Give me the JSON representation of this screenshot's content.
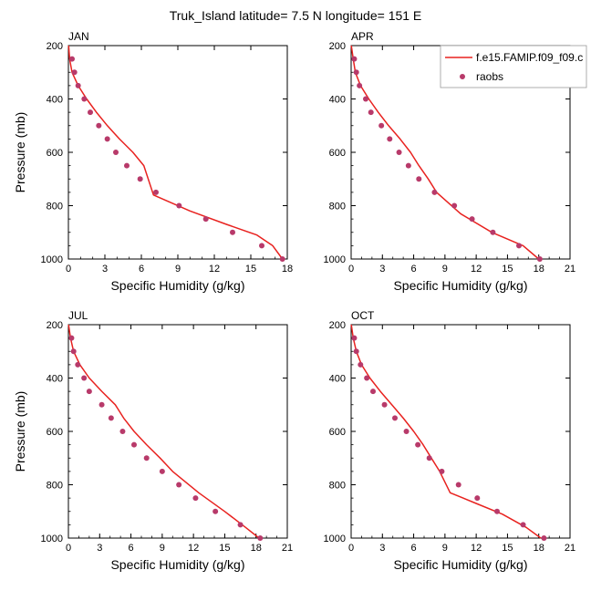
{
  "figure_title": "Truk_Island  latitude= 7.5 N longitude= 151 E",
  "colors": {
    "model_line": "#e8221f",
    "raobs_marker": "#b83a6a",
    "axes": "#000000"
  },
  "legend": {
    "model_label": "f.e15.FAMIP.f09_f09.c",
    "obs_label": "raobs"
  },
  "chart_data": [
    {
      "type": "line",
      "title": "JAN",
      "xlabel": "Specific Humidity (g/kg)",
      "ylabel": "Pressure (mb)",
      "xlim": [
        0,
        18
      ],
      "ylim": [
        1000,
        200
      ],
      "xticks": [
        "0",
        "3",
        "6",
        "9",
        "12",
        "15",
        "18"
      ],
      "yticks": [
        "200",
        "400",
        "600",
        "800",
        "1000"
      ],
      "series": [
        {
          "name": "f.e15.FAMIP.f09_f09.c",
          "kind": "line",
          "x": [
            0.02,
            0.1,
            0.3,
            0.8,
            1.5,
            2.3,
            3.2,
            4.2,
            5.3,
            6.2,
            7.0,
            10.0,
            13.0,
            15.5,
            16.8,
            17.6
          ],
          "y": [
            200,
            250,
            300,
            350,
            400,
            450,
            500,
            550,
            600,
            650,
            760,
            820,
            870,
            910,
            950,
            1000
          ]
        },
        {
          "name": "raobs",
          "kind": "markers",
          "x": [
            0.3,
            0.5,
            0.8,
            1.3,
            1.8,
            2.5,
            3.2,
            3.9,
            4.8,
            5.9,
            7.2,
            9.1,
            11.3,
            13.5,
            15.9,
            17.6
          ],
          "y": [
            250,
            300,
            350,
            400,
            450,
            500,
            550,
            600,
            650,
            700,
            750,
            800,
            850,
            900,
            950,
            1000
          ]
        }
      ]
    },
    {
      "type": "line",
      "title": "APR",
      "xlabel": "Specific Humidity (g/kg)",
      "ylabel": "",
      "xlim": [
        0,
        21
      ],
      "ylim": [
        1000,
        200
      ],
      "xticks": [
        "0",
        "3",
        "6",
        "9",
        "12",
        "15",
        "18",
        "21"
      ],
      "yticks": [
        "200",
        "400",
        "600",
        "800",
        "1000"
      ],
      "series": [
        {
          "name": "f.e15.FAMIP.f09_f09.c",
          "kind": "line",
          "x": [
            0.02,
            0.2,
            0.4,
            0.9,
            1.7,
            2.6,
            3.6,
            4.7,
            5.7,
            6.5,
            7.4,
            8.2,
            10.5,
            13.5,
            16.5,
            18.0
          ],
          "y": [
            200,
            250,
            300,
            350,
            400,
            450,
            500,
            550,
            600,
            650,
            700,
            750,
            830,
            900,
            950,
            1000
          ]
        },
        {
          "name": "raobs",
          "kind": "markers",
          "x": [
            0.3,
            0.5,
            0.8,
            1.4,
            1.9,
            2.9,
            3.7,
            4.6,
            5.5,
            6.5,
            8.0,
            9.9,
            11.6,
            13.6,
            16.1,
            18.1
          ],
          "y": [
            250,
            300,
            350,
            400,
            450,
            500,
            550,
            600,
            650,
            700,
            750,
            800,
            850,
            900,
            950,
            1000
          ]
        }
      ]
    },
    {
      "type": "line",
      "title": "JUL",
      "xlabel": "Specific Humidity (g/kg)",
      "ylabel": "Pressure (mb)",
      "xlim": [
        0,
        21
      ],
      "ylim": [
        1000,
        200
      ],
      "xticks": [
        "0",
        "3",
        "6",
        "9",
        "12",
        "15",
        "18",
        "21"
      ],
      "yticks": [
        "200",
        "400",
        "600",
        "800",
        "1000"
      ],
      "series": [
        {
          "name": "f.e15.FAMIP.f09_f09.c",
          "kind": "line",
          "x": [
            0.02,
            0.2,
            0.5,
            1.1,
            2.0,
            3.2,
            4.5,
            5.3,
            6.3,
            7.5,
            8.8,
            10.0,
            12.5,
            15.0,
            17.0,
            18.3
          ],
          "y": [
            200,
            250,
            300,
            350,
            400,
            450,
            500,
            550,
            600,
            650,
            700,
            750,
            830,
            900,
            960,
            1000
          ]
        },
        {
          "name": "raobs",
          "kind": "markers",
          "x": [
            0.3,
            0.5,
            0.9,
            1.5,
            2.0,
            3.2,
            4.1,
            5.2,
            6.3,
            7.5,
            9.0,
            10.6,
            12.2,
            14.1,
            16.5,
            18.4
          ],
          "y": [
            250,
            300,
            350,
            400,
            450,
            500,
            550,
            600,
            650,
            700,
            750,
            800,
            850,
            900,
            950,
            1000
          ]
        }
      ]
    },
    {
      "type": "line",
      "title": "OCT",
      "xlabel": "Specific Humidity (g/kg)",
      "ylabel": "",
      "xlim": [
        0,
        21
      ],
      "ylim": [
        1000,
        200
      ],
      "xticks": [
        "0",
        "3",
        "6",
        "9",
        "12",
        "15",
        "18",
        "21"
      ],
      "yticks": [
        "200",
        "400",
        "600",
        "800",
        "1000"
      ],
      "series": [
        {
          "name": "f.e15.FAMIP.f09_f09.c",
          "kind": "line",
          "x": [
            0.02,
            0.2,
            0.5,
            1.0,
            1.8,
            2.8,
            3.9,
            5.0,
            6.0,
            6.9,
            7.7,
            8.5,
            9.5,
            12.0,
            14.5,
            16.8,
            18.2
          ],
          "y": [
            200,
            250,
            300,
            350,
            400,
            450,
            500,
            550,
            600,
            650,
            700,
            750,
            830,
            870,
            910,
            960,
            1000
          ]
        },
        {
          "name": "raobs",
          "kind": "markers",
          "x": [
            0.3,
            0.5,
            0.9,
            1.5,
            2.1,
            3.2,
            4.2,
            5.3,
            6.4,
            7.5,
            8.7,
            10.3,
            12.1,
            14.0,
            16.5,
            18.5
          ],
          "y": [
            250,
            300,
            350,
            400,
            450,
            500,
            550,
            600,
            650,
            700,
            750,
            800,
            850,
            900,
            950,
            1000
          ]
        }
      ]
    }
  ]
}
